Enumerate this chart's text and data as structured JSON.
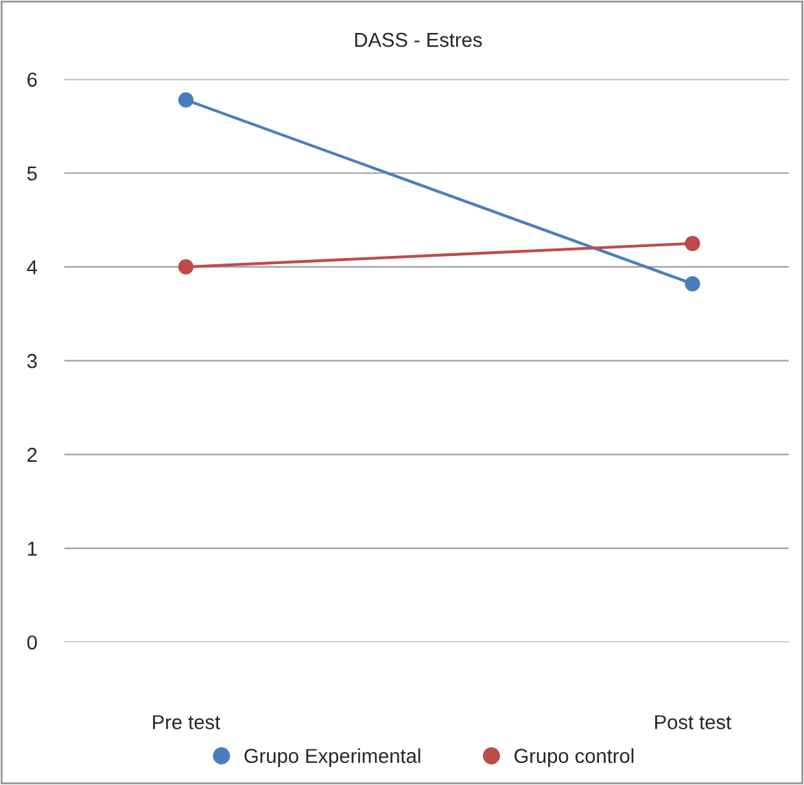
{
  "chart_data": {
    "type": "line",
    "title": "DASS - Estres",
    "categories": [
      "Pre test",
      "Post test"
    ],
    "series": [
      {
        "name": "Grupo Experimental",
        "color": "#4a7ebb",
        "values": [
          5.78,
          3.82
        ]
      },
      {
        "name": "Grupo control",
        "color": "#be4b48",
        "values": [
          4.0,
          4.25
        ]
      }
    ],
    "ylim": [
      0,
      6
    ],
    "yticks": [
      0,
      1,
      2,
      3,
      4,
      5,
      6
    ],
    "grid": "y",
    "legend": "bottom",
    "marker": "circle",
    "line_style": "solid"
  }
}
